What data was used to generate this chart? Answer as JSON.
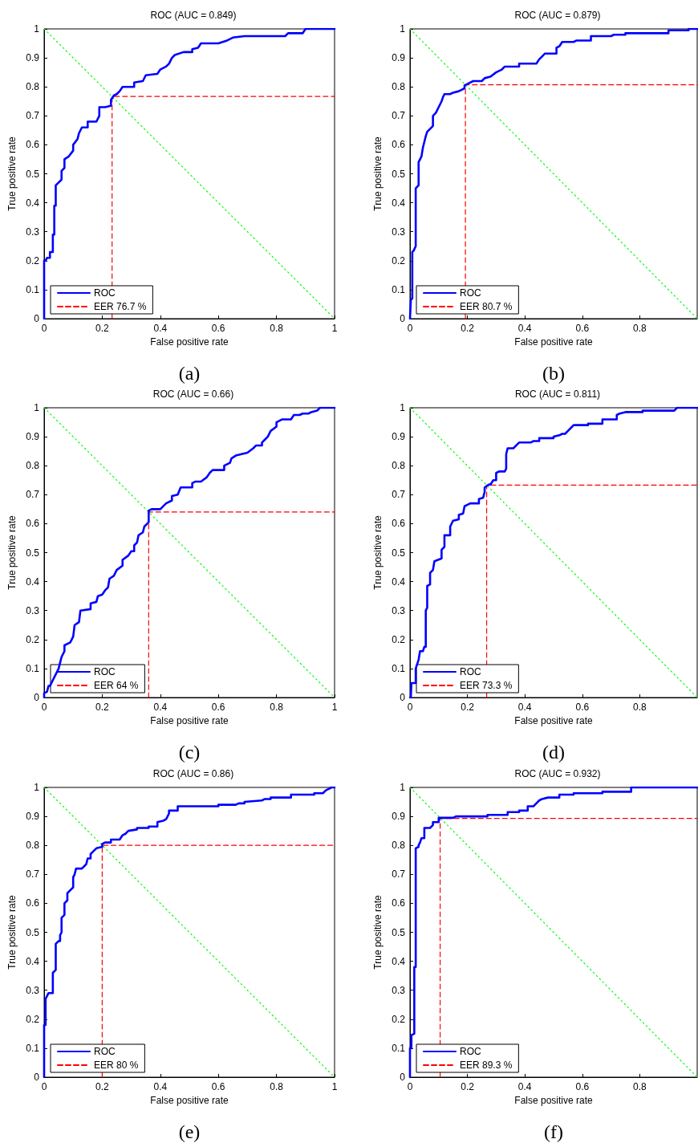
{
  "chart_data": [
    {
      "type": "line",
      "title": "ROC (AUC = 0.849)",
      "xlabel": "False positive rate",
      "ylabel": "True positive rate",
      "xlim": [
        0,
        1
      ],
      "ylim": [
        0,
        1
      ],
      "xticks": [
        0,
        0.2,
        0.4,
        0.6,
        0.8,
        1
      ],
      "yticks": [
        0,
        0.1,
        0.2,
        0.3,
        0.4,
        0.5,
        0.6,
        0.7,
        0.8,
        0.9,
        1
      ],
      "grid": false,
      "legend": "bottom left",
      "marker": "none",
      "annotations": [
        "(a)"
      ],
      "series": [
        {
          "name": "ROC",
          "color": "#0000ff",
          "line_style": "solid",
          "x": [
            0,
            0,
            0.005,
            0.01,
            0.02,
            0.02,
            0.03,
            0.03,
            0.035,
            0.035,
            0.04,
            0.04,
            0.05,
            0.06,
            0.06,
            0.07,
            0.07,
            0.085,
            0.1,
            0.1,
            0.115,
            0.12,
            0.13,
            0.15,
            0.15,
            0.18,
            0.19,
            0.19,
            0.21,
            0.23,
            0.23,
            0.24,
            0.25,
            0.26,
            0.27,
            0.31,
            0.31,
            0.34,
            0.35,
            0.39,
            0.4,
            0.42,
            0.43,
            0.44,
            0.45,
            0.48,
            0.51,
            0.51,
            0.53,
            0.54,
            0.6,
            0.63,
            0.65,
            0.69,
            0.83,
            0.84,
            0.89,
            0.9,
            1
          ],
          "values": [
            0,
            0.2,
            0.2,
            0.21,
            0.21,
            0.23,
            0.23,
            0.29,
            0.29,
            0.39,
            0.39,
            0.46,
            0.47,
            0.48,
            0.51,
            0.52,
            0.55,
            0.56,
            0.58,
            0.6,
            0.62,
            0.64,
            0.66,
            0.66,
            0.68,
            0.68,
            0.7,
            0.73,
            0.73,
            0.735,
            0.755,
            0.77,
            0.775,
            0.785,
            0.8,
            0.8,
            0.815,
            0.82,
            0.84,
            0.845,
            0.86,
            0.87,
            0.88,
            0.9,
            0.91,
            0.92,
            0.92,
            0.93,
            0.935,
            0.95,
            0.95,
            0.96,
            0.97,
            0.975,
            0.975,
            0.985,
            0.985,
            1,
            1
          ]
        },
        {
          "name": "EER 76.7 %",
          "color": "#ff0000",
          "line_style": "dashed",
          "x": [
            0.234,
            0.234,
            1
          ],
          "values": [
            0,
            0.767,
            0.767
          ]
        },
        {
          "color": "#00ff00",
          "line_style": "dotted",
          "x": [
            0,
            1
          ],
          "values": [
            1,
            0
          ]
        }
      ]
    },
    {
      "type": "line",
      "title": "ROC (AUC = 0.879)",
      "xlabel": "False positive rate",
      "ylabel": "True positive rate",
      "xlim": [
        0,
        1
      ],
      "ylim": [
        0,
        1
      ],
      "xticks": [
        0,
        0.2,
        0.4,
        0.6,
        0.8
      ],
      "yticks": [
        0,
        0.1,
        0.2,
        0.3,
        0.4,
        0.5,
        0.6,
        0.7,
        0.8,
        0.9,
        1
      ],
      "grid": false,
      "legend": "bottom left",
      "marker": "none",
      "annotations": [
        "(b)"
      ],
      "series": [
        {
          "name": "ROC",
          "color": "#0000ff",
          "line_style": "solid",
          "x": [
            0,
            0.003,
            0.008,
            0.008,
            0.013,
            0.02,
            0.02,
            0.03,
            0.03,
            0.04,
            0.045,
            0.05,
            0.055,
            0.06,
            0.07,
            0.08,
            0.08,
            0.09,
            0.1,
            0.11,
            0.115,
            0.12,
            0.14,
            0.15,
            0.17,
            0.18,
            0.19,
            0.19,
            0.2,
            0.22,
            0.25,
            0.26,
            0.28,
            0.3,
            0.32,
            0.33,
            0.38,
            0.38,
            0.44,
            0.45,
            0.46,
            0.47,
            0.51,
            0.51,
            0.52,
            0.53,
            0.57,
            0.58,
            0.63,
            0.63,
            0.7,
            0.71,
            0.75,
            0.75,
            0.9,
            0.9,
            0.97,
            0.97,
            1
          ],
          "values": [
            0,
            0.065,
            0.07,
            0.23,
            0.235,
            0.25,
            0.45,
            0.46,
            0.54,
            0.56,
            0.59,
            0.61,
            0.63,
            0.645,
            0.655,
            0.665,
            0.7,
            0.71,
            0.73,
            0.75,
            0.765,
            0.775,
            0.775,
            0.78,
            0.785,
            0.79,
            0.795,
            0.805,
            0.81,
            0.82,
            0.82,
            0.83,
            0.835,
            0.85,
            0.86,
            0.87,
            0.87,
            0.88,
            0.88,
            0.895,
            0.905,
            0.915,
            0.915,
            0.935,
            0.94,
            0.955,
            0.955,
            0.96,
            0.96,
            0.975,
            0.975,
            0.98,
            0.98,
            0.985,
            0.985,
            0.995,
            0.995,
            1,
            1
          ]
        },
        {
          "name": "EER 80.7 %",
          "color": "#ff0000",
          "line_style": "dashed",
          "x": [
            0.193,
            0.193,
            1
          ],
          "values": [
            0,
            0.807,
            0.807
          ]
        },
        {
          "color": "#00ff00",
          "line_style": "dotted",
          "x": [
            0,
            1
          ],
          "values": [
            1,
            0
          ]
        }
      ]
    },
    {
      "type": "line",
      "title": "ROC (AUC = 0.66)",
      "xlabel": "False positive rate",
      "ylabel": "True positive rate",
      "xlim": [
        0,
        1
      ],
      "ylim": [
        0,
        1
      ],
      "xticks": [
        0,
        0.2,
        0.4,
        0.6,
        0.8,
        1
      ],
      "yticks": [
        0,
        0.1,
        0.2,
        0.3,
        0.4,
        0.5,
        0.6,
        0.7,
        0.8,
        0.9,
        1
      ],
      "grid": false,
      "legend": "bottom left",
      "marker": "none",
      "annotations": [
        "(c)"
      ],
      "series": [
        {
          "name": "ROC",
          "color": "#0000ff",
          "line_style": "solid",
          "x": [
            0,
            0,
            0.01,
            0.015,
            0.02,
            0.03,
            0.04,
            0.05,
            0.055,
            0.06,
            0.065,
            0.07,
            0.07,
            0.09,
            0.1,
            0.105,
            0.12,
            0.125,
            0.16,
            0.16,
            0.18,
            0.185,
            0.2,
            0.21,
            0.22,
            0.225,
            0.24,
            0.25,
            0.27,
            0.27,
            0.29,
            0.3,
            0.31,
            0.31,
            0.32,
            0.325,
            0.34,
            0.345,
            0.36,
            0.36,
            0.37,
            0.4,
            0.42,
            0.44,
            0.44,
            0.46,
            0.47,
            0.51,
            0.51,
            0.52,
            0.54,
            0.56,
            0.57,
            0.58,
            0.62,
            0.62,
            0.64,
            0.645,
            0.66,
            0.68,
            0.7,
            0.72,
            0.73,
            0.75,
            0.75,
            0.76,
            0.77,
            0.78,
            0.8,
            0.8,
            0.82,
            0.85,
            0.86,
            0.88,
            0.89,
            0.91,
            0.92,
            0.94,
            0.95,
            1
          ],
          "values": [
            0,
            0.015,
            0.02,
            0.04,
            0.04,
            0.06,
            0.08,
            0.1,
            0.12,
            0.14,
            0.15,
            0.16,
            0.18,
            0.19,
            0.21,
            0.25,
            0.26,
            0.3,
            0.305,
            0.325,
            0.33,
            0.35,
            0.355,
            0.37,
            0.38,
            0.41,
            0.42,
            0.44,
            0.455,
            0.475,
            0.49,
            0.505,
            0.505,
            0.525,
            0.535,
            0.56,
            0.57,
            0.59,
            0.605,
            0.645,
            0.65,
            0.65,
            0.67,
            0.68,
            0.695,
            0.7,
            0.725,
            0.725,
            0.74,
            0.745,
            0.745,
            0.76,
            0.775,
            0.785,
            0.785,
            0.8,
            0.81,
            0.825,
            0.835,
            0.84,
            0.845,
            0.86,
            0.87,
            0.87,
            0.88,
            0.89,
            0.9,
            0.92,
            0.935,
            0.95,
            0.96,
            0.96,
            0.975,
            0.975,
            0.98,
            0.98,
            0.985,
            0.99,
            1,
            1
          ]
        },
        {
          "name": "EER 64 %",
          "color": "#ff0000",
          "line_style": "dashed",
          "x": [
            0.36,
            0.36,
            1
          ],
          "values": [
            0,
            0.64,
            0.64
          ]
        },
        {
          "color": "#00ff00",
          "line_style": "dotted",
          "x": [
            0,
            1
          ],
          "values": [
            1,
            0
          ]
        }
      ]
    },
    {
      "type": "line",
      "title": "ROC (AUC = 0.811)",
      "xlabel": "False positive rate",
      "ylabel": "True positive rate",
      "xlim": [
        0,
        1
      ],
      "ylim": [
        0,
        1
      ],
      "xticks": [
        0,
        0.2,
        0.4,
        0.6,
        0.8
      ],
      "yticks": [
        0,
        0.1,
        0.2,
        0.3,
        0.4,
        0.5,
        0.6,
        0.7,
        0.8,
        0.9,
        1
      ],
      "grid": false,
      "legend": "bottom left",
      "marker": "none",
      "annotations": [
        "(d)"
      ],
      "series": [
        {
          "name": "ROC",
          "color": "#0000ff",
          "line_style": "solid",
          "x": [
            0,
            0.003,
            0.005,
            0.02,
            0.02,
            0.03,
            0.035,
            0.045,
            0.05,
            0.055,
            0.055,
            0.06,
            0.06,
            0.07,
            0.07,
            0.08,
            0.085,
            0.11,
            0.11,
            0.12,
            0.12,
            0.14,
            0.14,
            0.15,
            0.17,
            0.17,
            0.185,
            0.19,
            0.2,
            0.21,
            0.24,
            0.24,
            0.255,
            0.26,
            0.26,
            0.275,
            0.28,
            0.29,
            0.3,
            0.3,
            0.31,
            0.33,
            0.335,
            0.335,
            0.34,
            0.36,
            0.37,
            0.38,
            0.42,
            0.43,
            0.45,
            0.45,
            0.5,
            0.5,
            0.52,
            0.53,
            0.54,
            0.55,
            0.56,
            0.57,
            0.62,
            0.62,
            0.67,
            0.67,
            0.72,
            0.72,
            0.73,
            0.75,
            0.81,
            0.81,
            0.92,
            0.93,
            1
          ],
          "values": [
            0,
            0,
            0.05,
            0.05,
            0.1,
            0.13,
            0.16,
            0.16,
            0.175,
            0.175,
            0.3,
            0.31,
            0.385,
            0.39,
            0.43,
            0.44,
            0.47,
            0.48,
            0.51,
            0.52,
            0.56,
            0.56,
            0.59,
            0.61,
            0.615,
            0.63,
            0.635,
            0.66,
            0.665,
            0.67,
            0.67,
            0.685,
            0.69,
            0.71,
            0.725,
            0.735,
            0.735,
            0.75,
            0.75,
            0.775,
            0.78,
            0.78,
            0.79,
            0.84,
            0.86,
            0.86,
            0.87,
            0.88,
            0.88,
            0.885,
            0.885,
            0.895,
            0.895,
            0.9,
            0.905,
            0.91,
            0.91,
            0.92,
            0.93,
            0.94,
            0.94,
            0.945,
            0.945,
            0.96,
            0.96,
            0.975,
            0.98,
            0.985,
            0.985,
            0.99,
            0.99,
            1,
            1
          ]
        },
        {
          "name": "EER 73.3 %",
          "color": "#ff0000",
          "line_style": "dashed",
          "x": [
            0.267,
            0.267,
            1
          ],
          "values": [
            0,
            0.733,
            0.733
          ]
        },
        {
          "color": "#00ff00",
          "line_style": "dotted",
          "x": [
            0,
            1
          ],
          "values": [
            1,
            0
          ]
        }
      ]
    },
    {
      "type": "line",
      "title": "ROC (AUC = 0.86)",
      "xlabel": "False positive rate",
      "ylabel": "True positive rate",
      "xlim": [
        0,
        1
      ],
      "ylim": [
        0,
        1
      ],
      "xticks": [
        0,
        0.2,
        0.4,
        0.6,
        0.8,
        1
      ],
      "yticks": [
        0,
        0.1,
        0.2,
        0.3,
        0.4,
        0.5,
        0.6,
        0.7,
        0.8,
        0.9,
        1
      ],
      "grid": false,
      "legend": "bottom left",
      "marker": "none",
      "annotations": [
        "(e)"
      ],
      "series": [
        {
          "name": "ROC",
          "color": "#0000ff",
          "line_style": "solid",
          "x": [
            0,
            0,
            0.005,
            0.005,
            0.01,
            0.015,
            0.03,
            0.03,
            0.04,
            0.04,
            0.05,
            0.055,
            0.055,
            0.06,
            0.06,
            0.07,
            0.07,
            0.08,
            0.08,
            0.09,
            0.1,
            0.1,
            0.105,
            0.11,
            0.13,
            0.14,
            0.145,
            0.15,
            0.16,
            0.16,
            0.17,
            0.18,
            0.2,
            0.2,
            0.21,
            0.23,
            0.23,
            0.26,
            0.27,
            0.28,
            0.29,
            0.32,
            0.32,
            0.36,
            0.36,
            0.39,
            0.39,
            0.41,
            0.42,
            0.43,
            0.43,
            0.46,
            0.46,
            0.6,
            0.6,
            0.66,
            0.67,
            0.69,
            0.69,
            0.75,
            0.76,
            0.78,
            0.78,
            0.85,
            0.85,
            0.93,
            0.93,
            0.96,
            0.97,
            0.98,
            0.99,
            1
          ],
          "values": [
            0,
            0.18,
            0.18,
            0.27,
            0.28,
            0.29,
            0.29,
            0.36,
            0.37,
            0.46,
            0.47,
            0.47,
            0.49,
            0.5,
            0.55,
            0.56,
            0.6,
            0.61,
            0.635,
            0.645,
            0.655,
            0.69,
            0.7,
            0.72,
            0.72,
            0.73,
            0.735,
            0.755,
            0.755,
            0.77,
            0.78,
            0.79,
            0.795,
            0.805,
            0.81,
            0.81,
            0.82,
            0.82,
            0.835,
            0.84,
            0.85,
            0.855,
            0.86,
            0.86,
            0.865,
            0.865,
            0.88,
            0.885,
            0.89,
            0.91,
            0.92,
            0.92,
            0.935,
            0.935,
            0.94,
            0.94,
            0.945,
            0.945,
            0.95,
            0.955,
            0.96,
            0.96,
            0.965,
            0.965,
            0.975,
            0.975,
            0.98,
            0.98,
            0.99,
            0.995,
            1,
            1
          ]
        },
        {
          "name": "EER 80 %",
          "color": "#ff0000",
          "line_style": "dashed",
          "x": [
            0.2,
            0.2,
            1
          ],
          "values": [
            0,
            0.8,
            0.8
          ]
        },
        {
          "color": "#00ff00",
          "line_style": "dotted",
          "x": [
            0,
            1
          ],
          "values": [
            1,
            0
          ]
        }
      ]
    },
    {
      "type": "line",
      "title": "ROC (AUC = 0.932)",
      "xlabel": "False positive rate",
      "ylabel": "True positive rate",
      "xlim": [
        0,
        1
      ],
      "ylim": [
        0,
        1
      ],
      "xticks": [
        0,
        0.2,
        0.4,
        0.6,
        0.8
      ],
      "yticks": [
        0,
        0.1,
        0.2,
        0.3,
        0.4,
        0.5,
        0.6,
        0.7,
        0.8,
        0.9,
        1
      ],
      "grid": false,
      "legend": "bottom left",
      "marker": "none",
      "annotations": [
        "(f)"
      ],
      "series": [
        {
          "name": "ROC",
          "color": "#0000ff",
          "line_style": "solid",
          "x": [
            0,
            0,
            0.005,
            0.005,
            0.015,
            0.015,
            0.02,
            0.02,
            0.03,
            0.03,
            0.035,
            0.04,
            0.05,
            0.05,
            0.07,
            0.08,
            0.08,
            0.1,
            0.1,
            0.15,
            0.16,
            0.27,
            0.27,
            0.34,
            0.34,
            0.38,
            0.38,
            0.41,
            0.41,
            0.43,
            0.44,
            0.45,
            0.46,
            0.48,
            0.52,
            0.52,
            0.57,
            0.57,
            0.67,
            0.67,
            0.77,
            0.77,
            1
          ],
          "values": [
            0,
            0.1,
            0.1,
            0.145,
            0.15,
            0.38,
            0.38,
            0.79,
            0.795,
            0.8,
            0.81,
            0.825,
            0.825,
            0.86,
            0.86,
            0.87,
            0.88,
            0.88,
            0.895,
            0.895,
            0.9,
            0.9,
            0.905,
            0.905,
            0.915,
            0.915,
            0.92,
            0.92,
            0.935,
            0.935,
            0.945,
            0.955,
            0.96,
            0.965,
            0.965,
            0.975,
            0.975,
            0.98,
            0.98,
            0.985,
            0.985,
            1,
            1
          ]
        },
        {
          "name": "EER 89.3 %",
          "color": "#ff0000",
          "line_style": "dashed",
          "x": [
            0.105,
            0.105,
            1
          ],
          "values": [
            0,
            0.893,
            0.893
          ]
        },
        {
          "color": "#00ff00",
          "line_style": "dotted",
          "x": [
            0,
            1
          ],
          "values": [
            1,
            0
          ]
        }
      ]
    }
  ]
}
